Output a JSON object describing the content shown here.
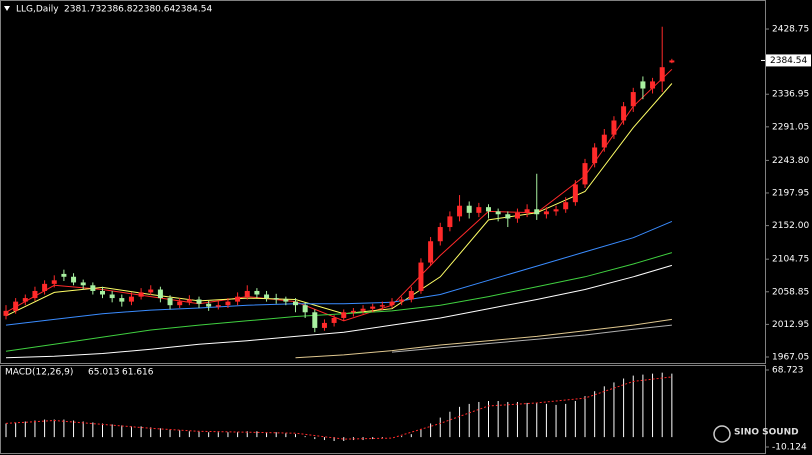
{
  "chart_data": [
    {
      "type": "candlestick",
      "title": "LLG,Daily",
      "up_color": "#ff2a2a",
      "down_color": "#a8f0a0",
      "candles": [
        [
          2025,
          2040,
          2020,
          2032
        ],
        [
          2032,
          2050,
          2028,
          2045
        ],
        [
          2045,
          2055,
          2040,
          2050
        ],
        [
          2050,
          2066,
          2046,
          2060
        ],
        [
          2060,
          2075,
          2055,
          2070
        ],
        [
          2070,
          2082,
          2065,
          2075
        ],
        [
          2084,
          2090,
          2074,
          2080
        ],
        [
          2080,
          2085,
          2068,
          2072
        ],
        [
          2072,
          2076,
          2062,
          2068
        ],
        [
          2068,
          2072,
          2055,
          2060
        ],
        [
          2060,
          2066,
          2050,
          2055
        ],
        [
          2055,
          2060,
          2044,
          2050
        ],
        [
          2050,
          2055,
          2038,
          2045
        ],
        [
          2045,
          2058,
          2040,
          2052
        ],
        [
          2052,
          2064,
          2048,
          2058
        ],
        [
          2058,
          2068,
          2054,
          2062
        ],
        [
          2062,
          2066,
          2044,
          2050
        ],
        [
          2050,
          2054,
          2034,
          2040
        ],
        [
          2040,
          2050,
          2036,
          2045
        ],
        [
          2045,
          2054,
          2040,
          2048
        ],
        [
          2048,
          2052,
          2036,
          2042
        ],
        [
          2042,
          2046,
          2032,
          2038
        ],
        [
          2038,
          2046,
          2034,
          2040
        ],
        [
          2040,
          2050,
          2036,
          2045
        ],
        [
          2045,
          2058,
          2040,
          2052
        ],
        [
          2052,
          2068,
          2048,
          2060
        ],
        [
          2060,
          2064,
          2050,
          2055
        ],
        [
          2055,
          2060,
          2045,
          2050
        ],
        [
          2050,
          2056,
          2042,
          2048
        ],
        [
          2048,
          2052,
          2040,
          2045
        ],
        [
          2045,
          2050,
          2030,
          2040
        ],
        [
          2040,
          2044,
          2022,
          2030
        ],
        [
          2030,
          2034,
          2002,
          2008
        ],
        [
          2008,
          2020,
          2004,
          2015
        ],
        [
          2015,
          2026,
          2010,
          2022
        ],
        [
          2022,
          2034,
          2018,
          2030
        ],
        [
          2030,
          2036,
          2024,
          2032
        ],
        [
          2032,
          2040,
          2028,
          2035
        ],
        [
          2035,
          2042,
          2030,
          2038
        ],
        [
          2038,
          2045,
          2033,
          2040
        ],
        [
          2040,
          2050,
          2036,
          2045
        ],
        [
          2045,
          2052,
          2040,
          2048
        ],
        [
          2048,
          2066,
          2044,
          2060
        ],
        [
          2060,
          2106,
          2056,
          2100
        ],
        [
          2100,
          2136,
          2095,
          2130
        ],
        [
          2130,
          2156,
          2124,
          2150
        ],
        [
          2150,
          2172,
          2144,
          2165
        ],
        [
          2165,
          2195,
          2158,
          2180
        ],
        [
          2180,
          2186,
          2162,
          2170
        ],
        [
          2170,
          2184,
          2164,
          2178
        ],
        [
          2178,
          2182,
          2162,
          2172
        ],
        [
          2172,
          2176,
          2158,
          2168
        ],
        [
          2168,
          2172,
          2150,
          2162
        ],
        [
          2162,
          2176,
          2156,
          2170
        ],
        [
          2170,
          2182,
          2164,
          2175
        ],
        [
          2175,
          2225,
          2160,
          2168
        ],
        [
          2168,
          2178,
          2162,
          2172
        ],
        [
          2172,
          2180,
          2166,
          2175
        ],
        [
          2175,
          2192,
          2170,
          2185
        ],
        [
          2185,
          2216,
          2180,
          2210
        ],
        [
          2210,
          2246,
          2205,
          2240
        ],
        [
          2240,
          2268,
          2234,
          2262
        ],
        [
          2262,
          2288,
          2256,
          2280
        ],
        [
          2280,
          2306,
          2274,
          2300
        ],
        [
          2300,
          2326,
          2294,
          2320
        ],
        [
          2320,
          2346,
          2312,
          2340
        ],
        [
          2355,
          2362,
          2330,
          2345
        ],
        [
          2345,
          2360,
          2338,
          2355
        ],
        [
          2355,
          2432,
          2340,
          2375
        ],
        [
          2381.73,
          2386.82,
          2380.64,
          2384.54
        ]
      ],
      "lines": [
        {
          "color": "#ff2a2a",
          "x": [
            0,
            5,
            10,
            15,
            20,
            25,
            30,
            35,
            40,
            45,
            50,
            55,
            60,
            65,
            69
          ],
          "values": [
            2030,
            2068,
            2062,
            2052,
            2042,
            2052,
            2045,
            2018,
            2040,
            2110,
            2172,
            2170,
            2222,
            2320,
            2372
          ]
        },
        {
          "color": "#ffff66",
          "x": [
            0,
            5,
            10,
            15,
            20,
            25,
            30,
            35,
            40,
            45,
            50,
            55,
            60,
            65,
            69
          ],
          "values": [
            2025,
            2058,
            2065,
            2055,
            2046,
            2050,
            2048,
            2028,
            2035,
            2080,
            2160,
            2170,
            2200,
            2290,
            2352
          ]
        },
        {
          "color": "#3a8cff",
          "x": [
            0,
            5,
            10,
            15,
            20,
            25,
            30,
            35,
            40,
            45,
            50,
            55,
            60,
            65,
            69
          ],
          "values": [
            2012,
            2020,
            2028,
            2033,
            2036,
            2040,
            2042,
            2042,
            2044,
            2055,
            2075,
            2095,
            2115,
            2135,
            2158
          ]
        },
        {
          "color": "#40d040",
          "x": [
            0,
            5,
            10,
            15,
            20,
            25,
            30,
            35,
            40,
            45,
            50,
            55,
            60,
            65,
            69
          ],
          "values": [
            1975,
            1985,
            1995,
            2005,
            2012,
            2018,
            2024,
            2028,
            2032,
            2040,
            2052,
            2066,
            2080,
            2098,
            2114
          ]
        },
        {
          "color": "#ffffff",
          "x": [
            0,
            5,
            10,
            15,
            20,
            25,
            30,
            35,
            40,
            45,
            50,
            55,
            60,
            65,
            69
          ],
          "values": [
            1966,
            1968,
            1972,
            1978,
            1985,
            1990,
            1996,
            2002,
            2012,
            2022,
            2035,
            2048,
            2062,
            2080,
            2096
          ]
        },
        {
          "color": "#e0c890",
          "x": [
            0,
            5,
            10,
            15,
            20,
            25,
            30,
            35,
            40,
            45,
            50,
            55,
            60,
            65,
            69
          ],
          "values": [
            null,
            null,
            null,
            null,
            null,
            null,
            1966,
            1970,
            1976,
            1984,
            1990,
            1996,
            2004,
            2012,
            2020
          ]
        },
        {
          "color": "#b0b0b0",
          "x": [
            0,
            5,
            10,
            15,
            20,
            25,
            30,
            35,
            40,
            45,
            50,
            55,
            60,
            65,
            69
          ],
          "values": [
            null,
            null,
            null,
            null,
            null,
            null,
            null,
            null,
            1974,
            1980,
            1986,
            1992,
            1998,
            2006,
            2012
          ]
        }
      ],
      "ylim": [
        1960,
        2466.8
      ],
      "yticks": [
        2428.75,
        2336.95,
        2291.05,
        {
          "value": 2243.8,
          "label": "2243.80"
        },
        2197.95,
        {
          "value": 2152,
          "label": "2152.00"
        },
        2104.75,
        2058.85,
        2012.95,
        1967.05
      ]
    },
    {
      "type": "bar",
      "title": "MACD(12,26,9)",
      "color": "#ffffff",
      "values": [
        14,
        15,
        16,
        17,
        18,
        18,
        18,
        17,
        16,
        15,
        14,
        13,
        12,
        11,
        11,
        10,
        9,
        8,
        7,
        6,
        6,
        5,
        5,
        5,
        5,
        6,
        6,
        5,
        5,
        4,
        3,
        1,
        -2,
        -3,
        -4,
        -4,
        -3,
        -3,
        -2,
        -1,
        0,
        1,
        3,
        8,
        14,
        20,
        26,
        31,
        34,
        36,
        37,
        37,
        36,
        36,
        35,
        35,
        34,
        33,
        34,
        37,
        42,
        47,
        52,
        56,
        60,
        63,
        64,
        65,
        66,
        65.013
      ],
      "signal": {
        "color": "#ff2a2a",
        "x": [
          0,
          5,
          10,
          15,
          20,
          25,
          30,
          35,
          40,
          45,
          50,
          55,
          60,
          65,
          69
        ],
        "values": [
          14,
          17,
          13,
          9,
          6,
          5,
          4,
          -2,
          -1,
          14,
          32,
          35,
          40,
          57,
          61.616
        ]
      },
      "ylim": [
        -10.124,
        68.723
      ],
      "yticks": [
        68.723,
        -10.124
      ]
    }
  ],
  "watermark": "SINO SOUND"
}
